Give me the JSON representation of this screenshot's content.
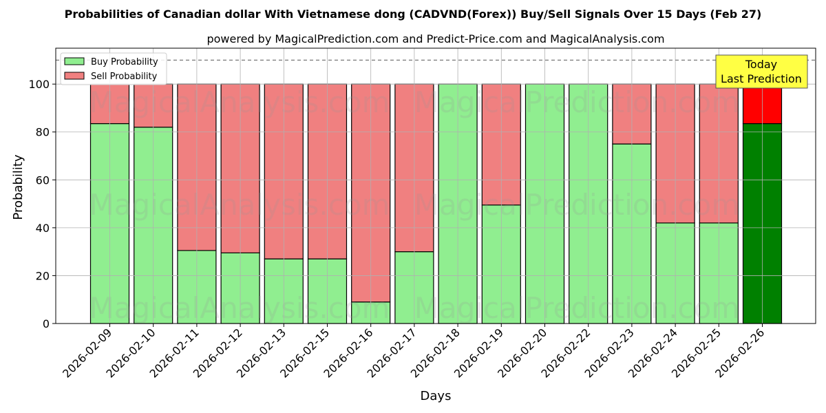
{
  "chart_data": {
    "type": "bar",
    "stacked": true,
    "title": "Probabilities of Canadian dollar With Vietnamese dong (CADVND(Forex)) Buy/Sell Signals Over 15 Days (Feb 27)",
    "subtitle": "powered by MagicalPrediction.com and Predict-Price.com and MagicalAnalysis.com",
    "xlabel": "Days",
    "ylabel": "Probability",
    "ylim": [
      0,
      115
    ],
    "yticks": [
      0,
      20,
      40,
      60,
      80,
      100
    ],
    "grid": true,
    "legend_position": "top-left",
    "reference_line": 110,
    "categories": [
      "2026-02-09",
      "2026-02-10",
      "2026-02-11",
      "2026-02-12",
      "2026-02-13",
      "2026-02-15",
      "2026-02-16",
      "2026-02-17",
      "2026-02-18",
      "2026-02-19",
      "2026-02-20",
      "2026-02-22",
      "2026-02-23",
      "2026-02-24",
      "2026-02-25",
      "2026-02-26"
    ],
    "series": [
      {
        "name": "Buy Probability",
        "color": "#90ee90",
        "values": [
          83.5,
          82,
          30.5,
          29.5,
          27,
          27,
          9,
          30,
          100,
          49.5,
          100,
          100,
          75,
          42,
          42,
          83.5
        ]
      },
      {
        "name": "Sell Probability",
        "color": "#f08080",
        "values": [
          16.5,
          18,
          69.5,
          70.5,
          73,
          73,
          91,
          70,
          0,
          50.5,
          0,
          0,
          25,
          58,
          58,
          16.5
        ]
      }
    ],
    "highlight": {
      "index": 15,
      "buy_color": "#008000",
      "sell_color": "#ff0000",
      "annotation": "Today\nLast Prediction",
      "annotation_color": "#ffff44"
    },
    "watermarks": [
      "MagicalAnalysis.com",
      "MagicalPrediction.com"
    ]
  }
}
